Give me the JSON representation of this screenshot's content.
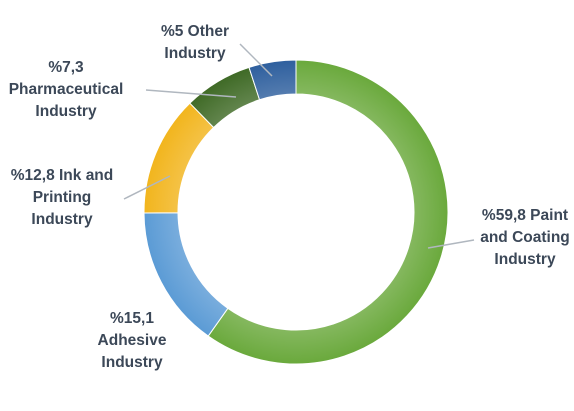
{
  "chart_data": {
    "type": "pie",
    "variant": "doughnut",
    "title": "",
    "slices": [
      {
        "label_lines": [
          "%59,8 Paint",
          "and Coating",
          "Industry"
        ],
        "value": 59.8,
        "color": "#6aa93c"
      },
      {
        "label_lines": [
          "%15,1",
          "Adhesive",
          "Industry"
        ],
        "value": 15.1,
        "color": "#5b9bd5"
      },
      {
        "label_lines": [
          "%12,8 Ink and",
          "Printing",
          "Industry"
        ],
        "value": 12.8,
        "color": "#f2b51d"
      },
      {
        "label_lines": [
          "%7,3",
          "Pharmaceutical",
          "Industry"
        ],
        "value": 7.3,
        "color": "#3f6a26"
      },
      {
        "label_lines": [
          "%5 Other",
          "Industry"
        ],
        "value": 5.0,
        "color": "#2e5f9e"
      }
    ],
    "legend": "none",
    "label_color": "#3c4858",
    "leader_line_color": "#b0b7bf"
  }
}
